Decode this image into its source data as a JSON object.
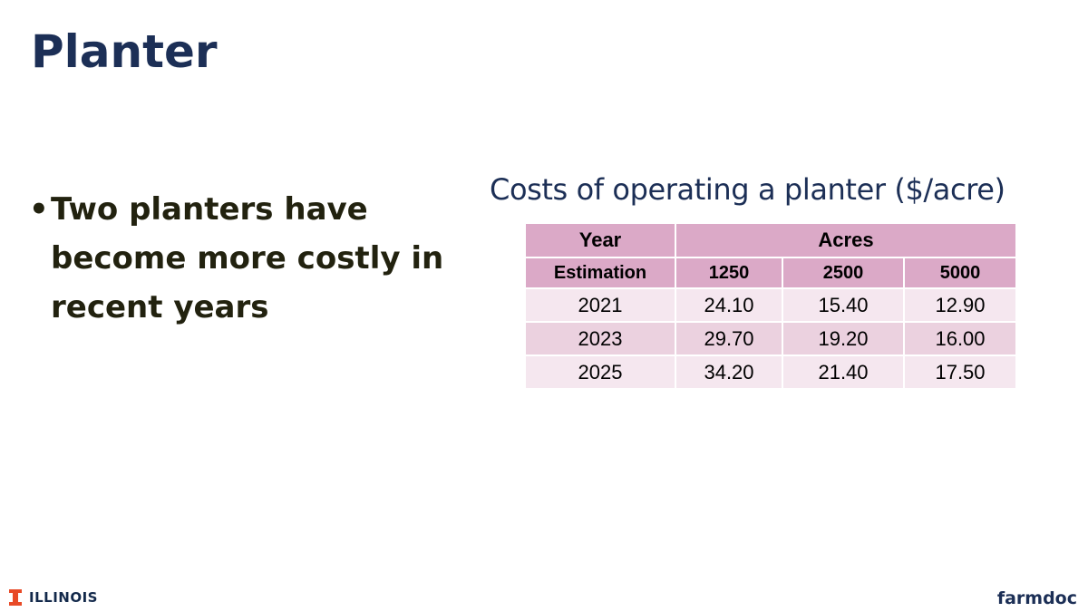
{
  "slide": {
    "title": "Planter",
    "bullets": [
      "Two planters have become more costly in recent years"
    ]
  },
  "table": {
    "title": "Costs of operating a planter ($/acre)",
    "header_row1": {
      "year": "Year",
      "acres": "Acres"
    },
    "header_row2": [
      "Estimation",
      "1250",
      "2500",
      "5000"
    ],
    "rows": [
      [
        "2021",
        "24.10",
        "15.40",
        "12.90"
      ],
      [
        "2023",
        "29.70",
        "19.20",
        "16.00"
      ],
      [
        "2025",
        "34.20",
        "21.40",
        "17.50"
      ]
    ]
  },
  "footer": {
    "left_logo_text": "ILLINOIS",
    "right_logo_text": "farmdoc"
  },
  "colors": {
    "title": "#1c2f56",
    "table_header": "#dba9c7",
    "row_light": "#f5e7ef",
    "row_dark": "#ebd1df",
    "illinois_orange": "#e84a27"
  }
}
